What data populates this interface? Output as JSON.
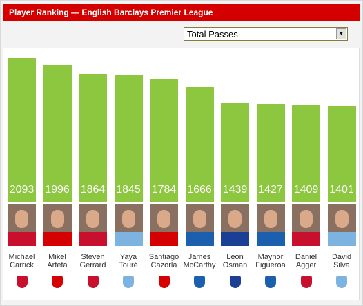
{
  "header": {
    "title": "Player Ranking — English Barclays Premier League"
  },
  "controls": {
    "metric": "Total Passes"
  },
  "chart_data": {
    "type": "bar",
    "categories": [
      "Michael Carrick",
      "Mikel Arteta",
      "Steven Gerrard",
      "Yaya Touré",
      "Santiago Cazorla",
      "James McCarthy",
      "Leon Osman",
      "Maynor Figueroa",
      "Daniel Agger",
      "David Silva"
    ],
    "values": [
      2093,
      1996,
      1864,
      1845,
      1784,
      1666,
      1439,
      1427,
      1409,
      1401
    ],
    "color": "#8dc63f"
  }
}
